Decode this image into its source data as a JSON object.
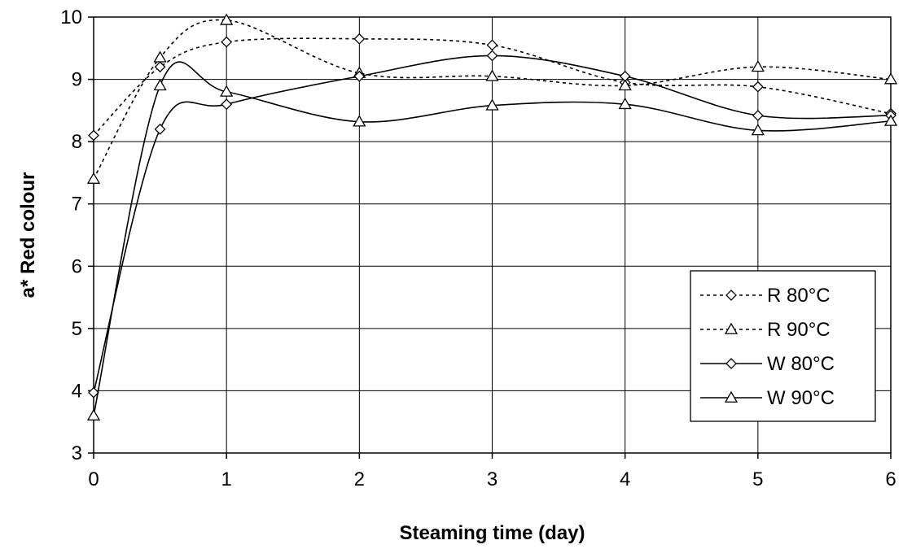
{
  "chart_data": {
    "type": "line",
    "title": "",
    "xlabel": "Steaming time (day)",
    "ylabel": "a* Red colour",
    "xlim": [
      0,
      6
    ],
    "ylim": [
      3,
      10
    ],
    "xticks": [
      "0",
      "1",
      "2",
      "3",
      "4",
      "5",
      "6"
    ],
    "yticks": [
      "3",
      "4",
      "5",
      "6",
      "7",
      "8",
      "9",
      "10"
    ],
    "grid": true,
    "legend_position": "bottom-right",
    "series": [
      {
        "name": "R 80°C",
        "line_style": "dashed",
        "marker": "diamond",
        "x": [
          0,
          0.5,
          1,
          2,
          3,
          4,
          5,
          6
        ],
        "y": [
          8.1,
          9.2,
          9.6,
          9.65,
          9.55,
          8.95,
          8.88,
          8.45
        ]
      },
      {
        "name": "R 90°C",
        "line_style": "dashed",
        "marker": "triangle",
        "x": [
          0,
          0.5,
          1,
          2,
          3,
          4,
          5,
          6
        ],
        "y": [
          7.4,
          9.35,
          9.95,
          9.1,
          9.05,
          8.9,
          9.2,
          9.0
        ]
      },
      {
        "name": "W 80°C",
        "line_style": "solid",
        "marker": "diamond",
        "x": [
          0,
          0.5,
          1,
          2,
          3,
          4,
          5,
          6
        ],
        "y": [
          3.97,
          8.2,
          8.6,
          9.05,
          9.38,
          9.05,
          8.42,
          8.42
        ]
      },
      {
        "name": "W 90°C",
        "line_style": "solid",
        "marker": "triangle",
        "x": [
          0,
          0.5,
          1,
          2,
          3,
          4,
          5,
          6
        ],
        "y": [
          3.6,
          8.9,
          8.8,
          8.32,
          8.58,
          8.6,
          8.18,
          8.33
        ]
      }
    ]
  }
}
